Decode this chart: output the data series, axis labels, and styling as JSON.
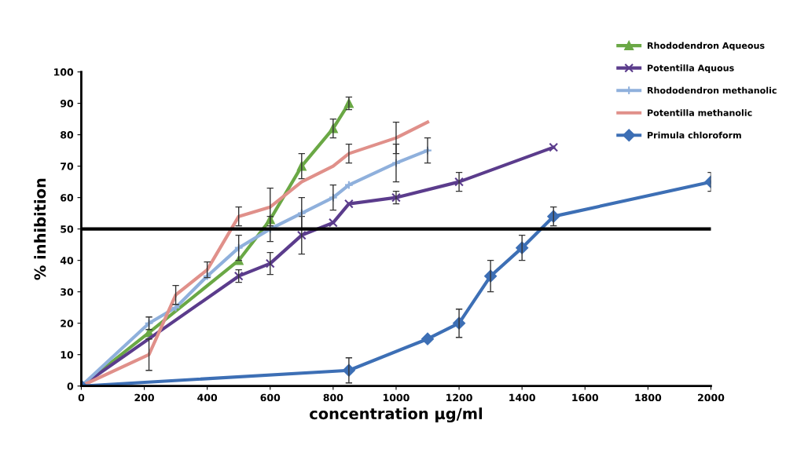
{
  "chart_data": {
    "type": "line",
    "xlabel": "concentration µg/ml",
    "ylabel": "% inhibition",
    "xlim": [
      0,
      2000
    ],
    "xticks": [
      0,
      200,
      400,
      600,
      800,
      1000,
      1200,
      1400,
      1600,
      1800,
      2000
    ],
    "ylim": [
      0,
      100
    ],
    "yticks": [
      0,
      10,
      20,
      30,
      40,
      50,
      60,
      70,
      80,
      90,
      100
    ],
    "grid": false,
    "legend": "top right",
    "ref_lines": [
      {
        "axis": "y",
        "value": 50,
        "color": "#000000",
        "line_style": "solid"
      }
    ],
    "series": [
      {
        "name": "Rhododendron Aqueous",
        "color": "#6aa845",
        "marker": "triangle",
        "x": [
          0,
          215,
          500,
          600,
          700,
          800,
          850
        ],
        "values": [
          0,
          17,
          40,
          53,
          70,
          82,
          90
        ],
        "errors": [
          null,
          null,
          null,
          null,
          4,
          3,
          2
        ]
      },
      {
        "name": "Potentilla Aquous",
        "color": "#5b3c8c",
        "marker": "cross",
        "x": [
          0,
          500,
          600,
          700,
          800,
          850,
          1000,
          1200,
          1500
        ],
        "values": [
          0,
          35,
          39,
          48,
          52,
          58,
          60,
          65,
          76
        ],
        "errors": [
          null,
          2,
          3.5,
          6,
          null,
          null,
          2,
          3,
          null
        ]
      },
      {
        "name": "Rhododendron methanolic",
        "color": "#8fb0dc",
        "marker": "plus",
        "x": [
          0,
          215,
          300,
          400,
          500,
          600,
          700,
          800,
          850,
          1000,
          1100
        ],
        "values": [
          0,
          20,
          25,
          35,
          44,
          50,
          55,
          60,
          64,
          71,
          75
        ],
        "errors": [
          null,
          2,
          null,
          null,
          4,
          4,
          5,
          4,
          null,
          6,
          4
        ]
      },
      {
        "name": "Potentilla methanolic",
        "color": "#e0908a",
        "marker": "none",
        "x": [
          0,
          215,
          300,
          400,
          500,
          600,
          700,
          800,
          850,
          1000,
          1100
        ],
        "values": [
          0,
          10,
          29,
          37,
          54,
          57,
          65,
          70,
          74,
          79,
          84
        ],
        "errors": [
          null,
          5,
          3,
          2.5,
          3,
          6,
          null,
          null,
          3,
          5,
          null
        ]
      },
      {
        "name": "Primula chloroform",
        "color": "#3d6fb5",
        "marker": "diamond",
        "x": [
          0,
          850,
          1100,
          1200,
          1300,
          1400,
          1500,
          2000
        ],
        "values": [
          0,
          5,
          15,
          20,
          35,
          44,
          54,
          65
        ],
        "errors": [
          null,
          4,
          null,
          4.5,
          5,
          4,
          3,
          3
        ]
      }
    ]
  }
}
